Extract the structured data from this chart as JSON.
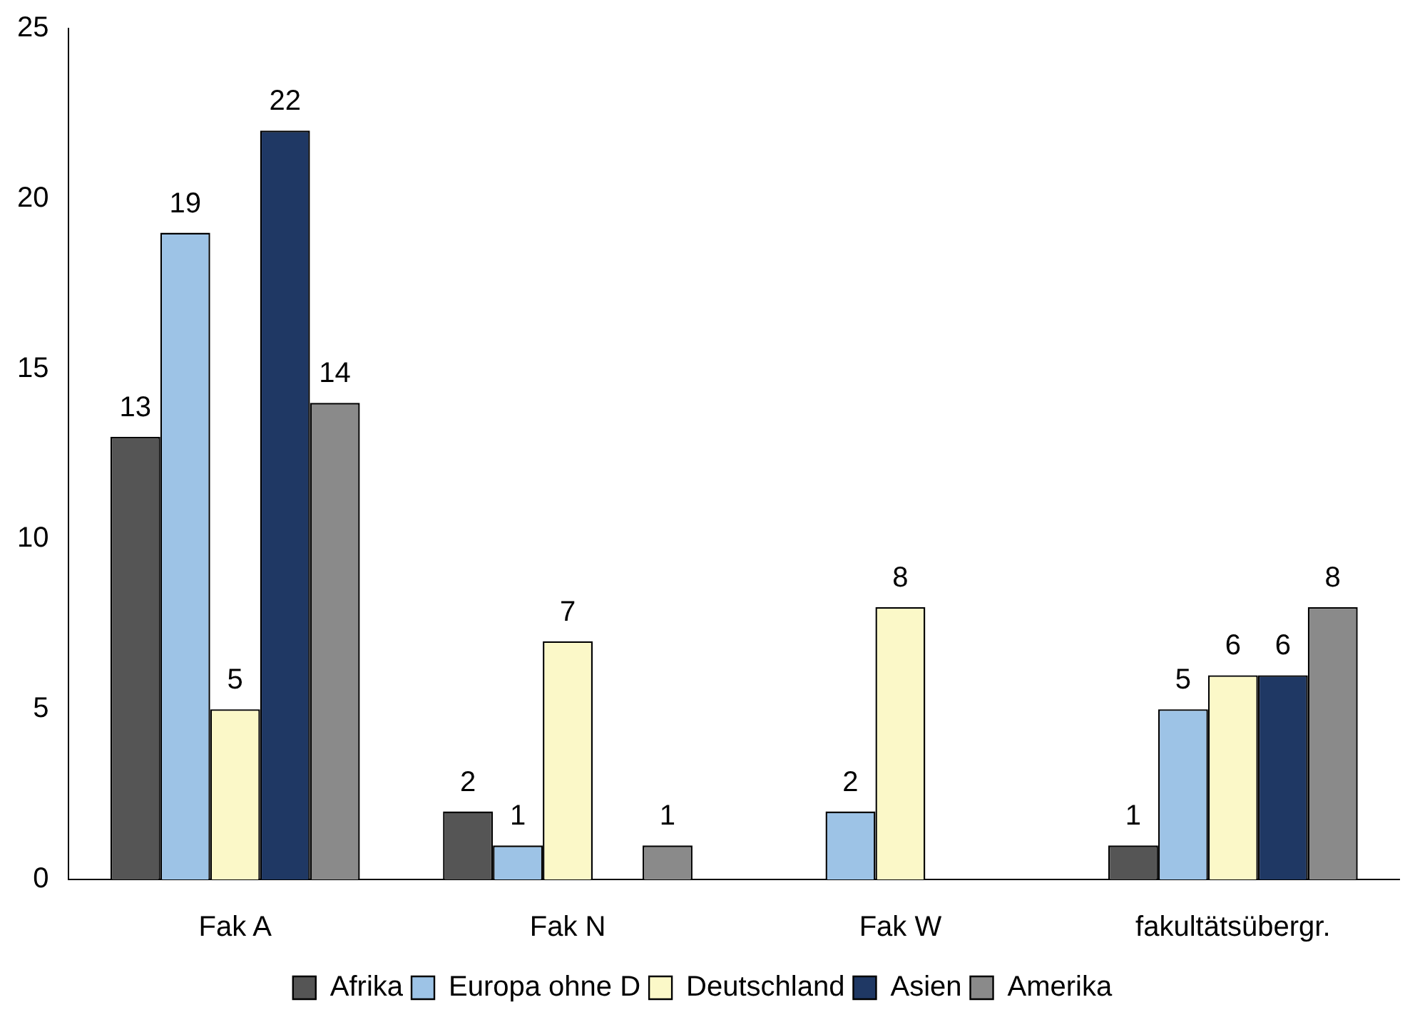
{
  "chart_data": {
    "type": "bar",
    "categories": [
      "Fak A",
      "Fak N",
      "Fak W",
      "fakultätsübergr."
    ],
    "series": [
      {
        "name": "Afrika",
        "color": "#555555",
        "values": [
          13,
          2,
          null,
          1
        ]
      },
      {
        "name": "Europa ohne D",
        "color": "#9dc3e6",
        "values": [
          19,
          1,
          2,
          5
        ]
      },
      {
        "name": "Deutschland",
        "color": "#fbf8c8",
        "values": [
          5,
          7,
          8,
          6
        ]
      },
      {
        "name": "Asien",
        "color": "#1f3864",
        "values": [
          22,
          null,
          null,
          6
        ]
      },
      {
        "name": "Amerika",
        "color": "#8a8a8a",
        "values": [
          14,
          1,
          null,
          8
        ]
      }
    ],
    "ylim": [
      0,
      25
    ],
    "yticks": [
      0,
      5,
      10,
      15,
      20,
      25
    ],
    "grid": false,
    "legend": "bottom",
    "data_labels": true
  }
}
